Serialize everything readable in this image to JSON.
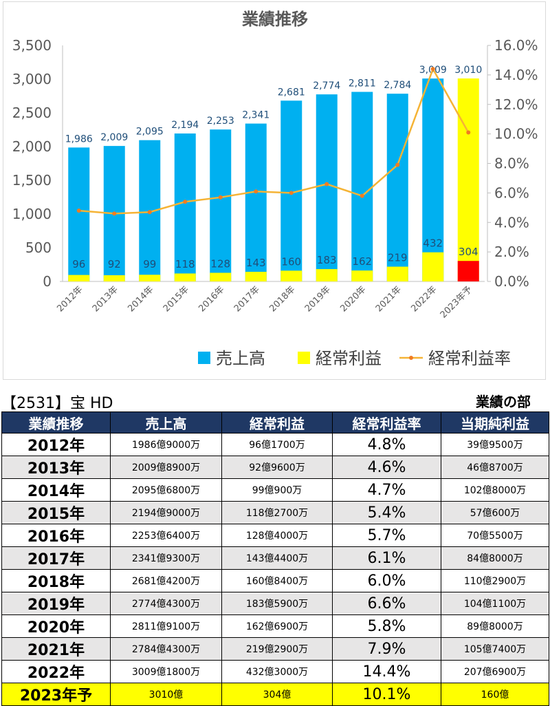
{
  "colors": {
    "sales": "#00b0f0",
    "profit": "#ffff00",
    "forecast_profit": "#ff0000",
    "rate": "#f5b335",
    "rate_marker": "#f07c22",
    "header_bg": "#1f3864"
  },
  "chart_data": {
    "type": "bar",
    "title": "業績推移",
    "categories": [
      "2012年",
      "2013年",
      "2014年",
      "2015年",
      "2016年",
      "2017年",
      "2018年",
      "2019年",
      "2020年",
      "2021年",
      "2022年",
      "2023年予"
    ],
    "series": [
      {
        "name": "売上高",
        "type": "bar",
        "axis": "left",
        "values": [
          1986,
          2009,
          2095,
          2194,
          2253,
          2341,
          2681,
          2774,
          2811,
          2784,
          3009,
          3010
        ],
        "labels": [
          "1,986",
          "2,009",
          "2,095",
          "2,194",
          "2,253",
          "2,341",
          "2,681",
          "2,774",
          "2,811",
          "2,784",
          "3,009",
          "3,010"
        ]
      },
      {
        "name": "経常利益",
        "type": "bar",
        "axis": "left",
        "values": [
          96,
          92,
          99,
          118,
          128,
          143,
          160,
          183,
          162,
          219,
          432,
          304
        ],
        "labels": [
          "96",
          "92",
          "99",
          "118",
          "128",
          "143",
          "160",
          "183",
          "162",
          "219",
          "432",
          "304"
        ]
      },
      {
        "name": "経常利益率",
        "type": "line",
        "axis": "right",
        "values": [
          4.8,
          4.6,
          4.7,
          5.4,
          5.7,
          6.1,
          6.0,
          6.6,
          5.8,
          7.9,
          14.4,
          10.1
        ]
      }
    ],
    "ylim": [
      0,
      3500
    ],
    "y_ticks": [
      "0",
      "500",
      "1,000",
      "1,500",
      "2,000",
      "2,500",
      "3,000",
      "3,500"
    ],
    "y2lim": [
      0,
      16
    ],
    "y2_ticks": [
      "0.0%",
      "2.0%",
      "4.0%",
      "6.0%",
      "8.0%",
      "10.0%",
      "12.0%",
      "14.0%",
      "16.0%"
    ],
    "grid": false,
    "legend_position": "bottom-right"
  },
  "table": {
    "company": "【2531】宝 HD",
    "section": "業績の部",
    "headers": [
      "業績推移",
      "売上高",
      "経常利益",
      "経常利益率",
      "当期純利益"
    ],
    "rows": [
      [
        "2012年",
        "1986億9000万",
        "96億1700万",
        "4.8%",
        "39億9500万"
      ],
      [
        "2013年",
        "2009億8900万",
        "92億9600万",
        "4.6%",
        "46億8700万"
      ],
      [
        "2014年",
        "2095億6800万",
        "99億900万",
        "4.7%",
        "102億8000万"
      ],
      [
        "2015年",
        "2194億9000万",
        "118億2700万",
        "5.4%",
        "57億600万"
      ],
      [
        "2016年",
        "2253億6400万",
        "128億4000万",
        "5.7%",
        "70億5500万"
      ],
      [
        "2017年",
        "2341億9300万",
        "143億4400万",
        "6.1%",
        "84億8000万"
      ],
      [
        "2018年",
        "2681億4200万",
        "160億8400万",
        "6.0%",
        "110億2900万"
      ],
      [
        "2019年",
        "2774億4300万",
        "183億5900万",
        "6.6%",
        "104億1100万"
      ],
      [
        "2020年",
        "2811億9100万",
        "162億6900万",
        "5.8%",
        "89億8000万"
      ],
      [
        "2021年",
        "2784億4300万",
        "219億2900万",
        "7.9%",
        "105億7400万"
      ],
      [
        "2022年",
        "3009億1800万",
        "432億3000万",
        "14.4%",
        "207億6900万"
      ],
      [
        "2023年予",
        "3010億",
        "304億",
        "10.1%",
        "160億"
      ]
    ]
  }
}
